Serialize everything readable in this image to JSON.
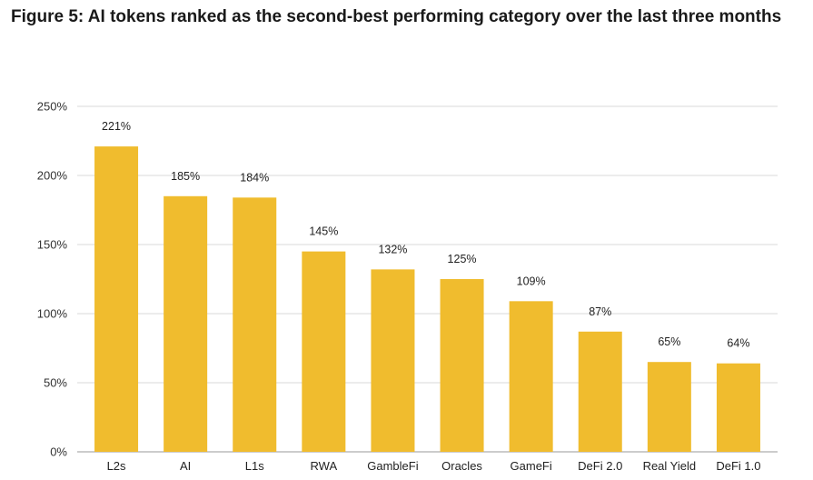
{
  "chart_data": {
    "type": "bar",
    "title": "Figure 5: AI tokens ranked as the second-best performing category over the last three months",
    "categories": [
      "L2s",
      "AI",
      "L1s",
      "RWA",
      "GambleFi",
      "Oracles",
      "GameFi",
      "DeFi 2.0",
      "Real Yield",
      "DeFi 1.0"
    ],
    "values": [
      221,
      185,
      184,
      145,
      132,
      125,
      109,
      87,
      65,
      64
    ],
    "data_labels": [
      "221%",
      "185%",
      "184%",
      "145%",
      "132%",
      "125%",
      "109%",
      "87%",
      "65%",
      "64%"
    ],
    "ytick_labels": [
      "0%",
      "50%",
      "100%",
      "150%",
      "200%",
      "250%"
    ],
    "ytick_values": [
      0,
      50,
      100,
      150,
      200,
      250
    ],
    "ylim": [
      0,
      250
    ],
    "grid": true,
    "legend": "none",
    "bar_color": "#F0BC2E",
    "grid_color": "#D9D9D9",
    "axis_color": "#999999"
  }
}
